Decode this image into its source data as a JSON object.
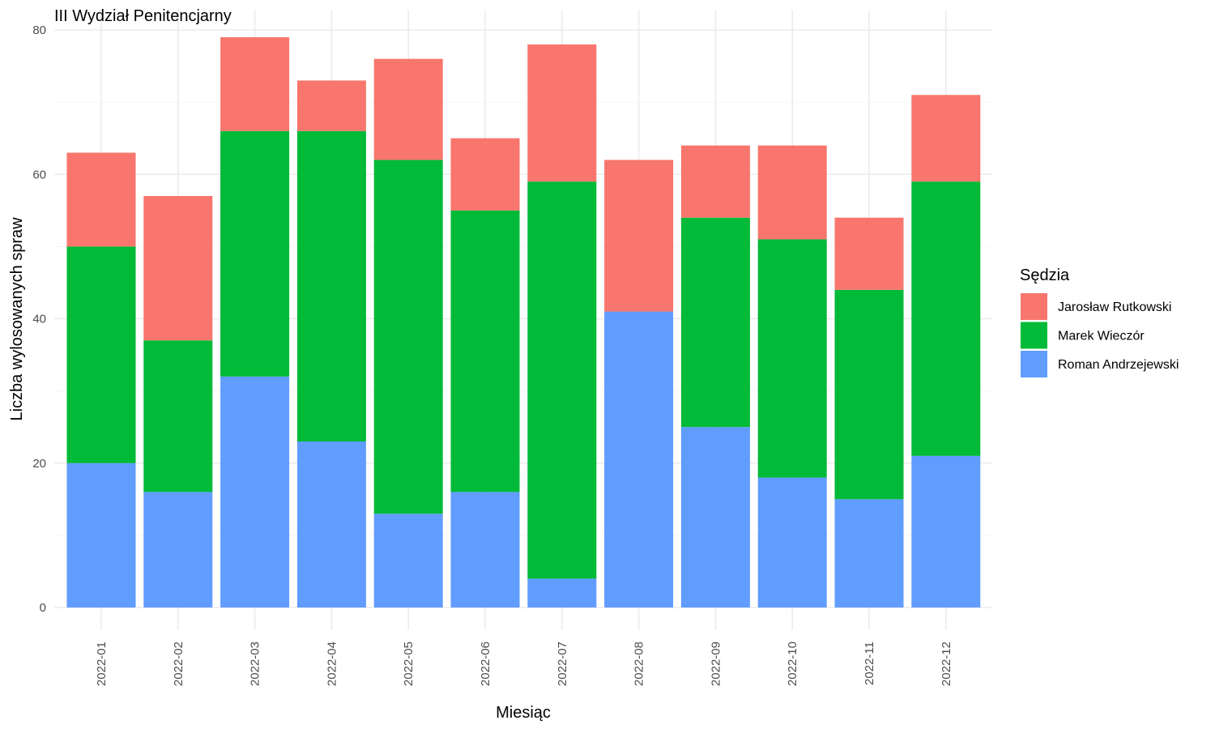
{
  "chart_data": {
    "type": "bar",
    "stacked": true,
    "title": "III Wydział Penitencjarny",
    "xlabel": "Miesiąc",
    "ylabel": "Liczba wylosowanych spraw",
    "ylim": [
      0,
      80
    ],
    "yticks": [
      0,
      20,
      40,
      60,
      80
    ],
    "grid": true,
    "legend_title": "Sędzia",
    "legend_position": "right",
    "categories": [
      "2022-01",
      "2022-02",
      "2022-03",
      "2022-04",
      "2022-05",
      "2022-06",
      "2022-07",
      "2022-08",
      "2022-09",
      "2022-10",
      "2022-11",
      "2022-12"
    ],
    "series": [
      {
        "name": "Roman Andrzejewski",
        "color": "#619CFF",
        "values": [
          20,
          16,
          32,
          23,
          13,
          16,
          4,
          41,
          25,
          18,
          15,
          21
        ]
      },
      {
        "name": "Marek Wieczór",
        "color": "#00BA38",
        "values": [
          30,
          21,
          34,
          43,
          49,
          39,
          55,
          0,
          29,
          33,
          29,
          38
        ]
      },
      {
        "name": "Jarosław Rutkowski",
        "color": "#F8766D",
        "values": [
          13,
          20,
          13,
          7,
          14,
          10,
          19,
          21,
          10,
          13,
          10,
          12
        ]
      }
    ],
    "legend_order": [
      "Jarosław Rutkowski",
      "Marek Wieczór",
      "Roman Andrzejewski"
    ]
  }
}
